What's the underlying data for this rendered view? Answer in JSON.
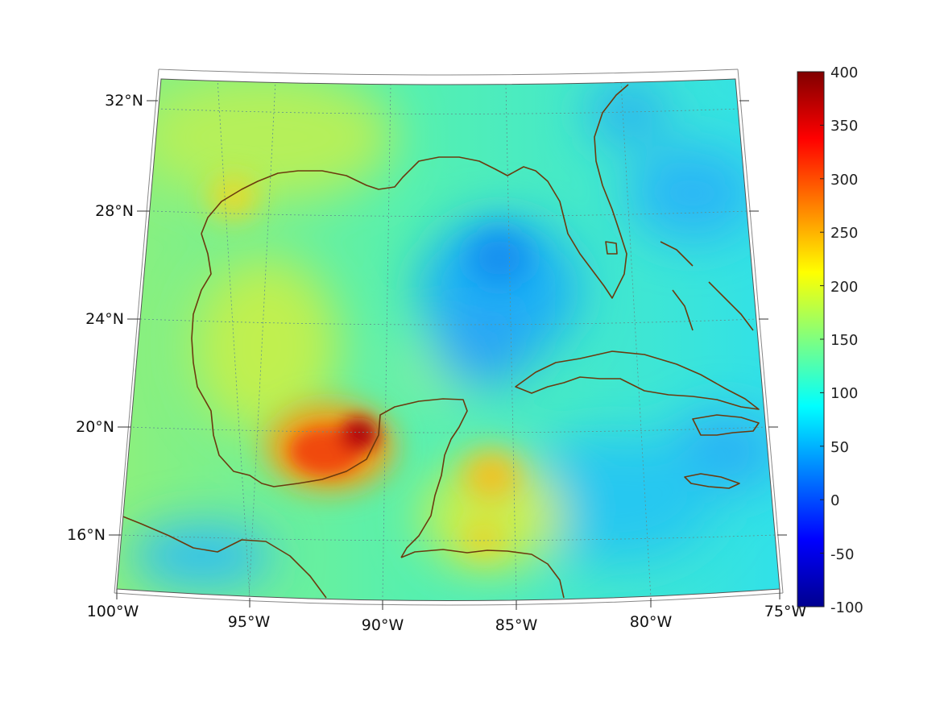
{
  "map": {
    "lat_labels": [
      "32°N",
      "28°N",
      "24°N",
      "20°N",
      "16°N"
    ],
    "lon_labels": [
      "100°W",
      "95°W",
      "90°W",
      "85°W",
      "80°W",
      "75°W"
    ],
    "coastline_color": "#6b3a0e",
    "grid_color": "#5f8f8f"
  },
  "colorbar": {
    "ticks": [
      "400",
      "350",
      "300",
      "250",
      "200",
      "150",
      "100",
      "50",
      "0",
      "-50",
      "-100"
    ],
    "min": -100,
    "max": 400,
    "colormap": "jet",
    "colors": [
      "#00008f",
      "#0000ff",
      "#00ffff",
      "#ffff00",
      "#ff0000",
      "#800000"
    ]
  },
  "field_features": [
    {
      "feature": "maximum near Bay of Campeche / Tabasco",
      "value": 390
    },
    {
      "feature": "minimum in central Gulf of Mexico",
      "value": 40
    },
    {
      "feature": "Atlantic east of Florida",
      "value": 60
    }
  ]
}
